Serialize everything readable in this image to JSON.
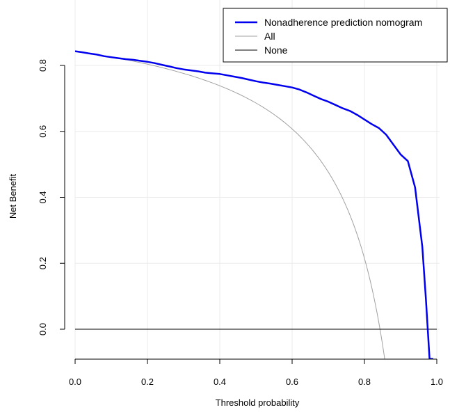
{
  "chart_data": {
    "type": "line",
    "title": "",
    "xlabel": "Threshold probability",
    "ylabel": "Net Benefit",
    "xlim": [
      0,
      1
    ],
    "ylim": [
      -0.09,
      1.0
    ],
    "xticks": [
      "0.0",
      "0.2",
      "0.4",
      "0.6",
      "0.8",
      "1.0"
    ],
    "yticks": [
      "0.0",
      "0.2",
      "0.4",
      "0.6",
      "0.8"
    ],
    "grid": true,
    "legend_position": "top-right",
    "prevalence": 0.843,
    "series": [
      {
        "name": "Nonadherence prediction nomogram",
        "color": "#0000ee",
        "x": [
          0,
          0.02,
          0.04,
          0.06,
          0.08,
          0.1,
          0.12,
          0.14,
          0.16,
          0.18,
          0.2,
          0.22,
          0.24,
          0.26,
          0.28,
          0.3,
          0.32,
          0.34,
          0.36,
          0.38,
          0.4,
          0.42,
          0.44,
          0.46,
          0.48,
          0.5,
          0.52,
          0.54,
          0.56,
          0.58,
          0.6,
          0.62,
          0.64,
          0.66,
          0.68,
          0.7,
          0.72,
          0.74,
          0.76,
          0.78,
          0.8,
          0.82,
          0.84,
          0.86,
          0.88,
          0.9,
          0.92,
          0.94,
          0.96,
          0.97,
          0.98,
          0.99
        ],
        "values": [
          0.843,
          0.84,
          0.836,
          0.833,
          0.828,
          0.825,
          0.822,
          0.819,
          0.817,
          0.814,
          0.811,
          0.807,
          0.802,
          0.797,
          0.792,
          0.788,
          0.785,
          0.782,
          0.778,
          0.776,
          0.774,
          0.77,
          0.766,
          0.762,
          0.757,
          0.752,
          0.748,
          0.745,
          0.741,
          0.737,
          0.733,
          0.727,
          0.718,
          0.708,
          0.698,
          0.69,
          0.68,
          0.67,
          0.662,
          0.65,
          0.636,
          0.622,
          0.61,
          0.59,
          0.56,
          0.53,
          0.51,
          0.43,
          0.25,
          0.09,
          -0.09,
          -0.09
        ]
      },
      {
        "name": "All",
        "color": "#a0a0a0",
        "formula": "prevalence - (1 - prevalence) * t / (1 - t)"
      },
      {
        "name": "None",
        "color": "#000000",
        "x": [
          0,
          1
        ],
        "values": [
          0,
          0
        ]
      }
    ]
  }
}
